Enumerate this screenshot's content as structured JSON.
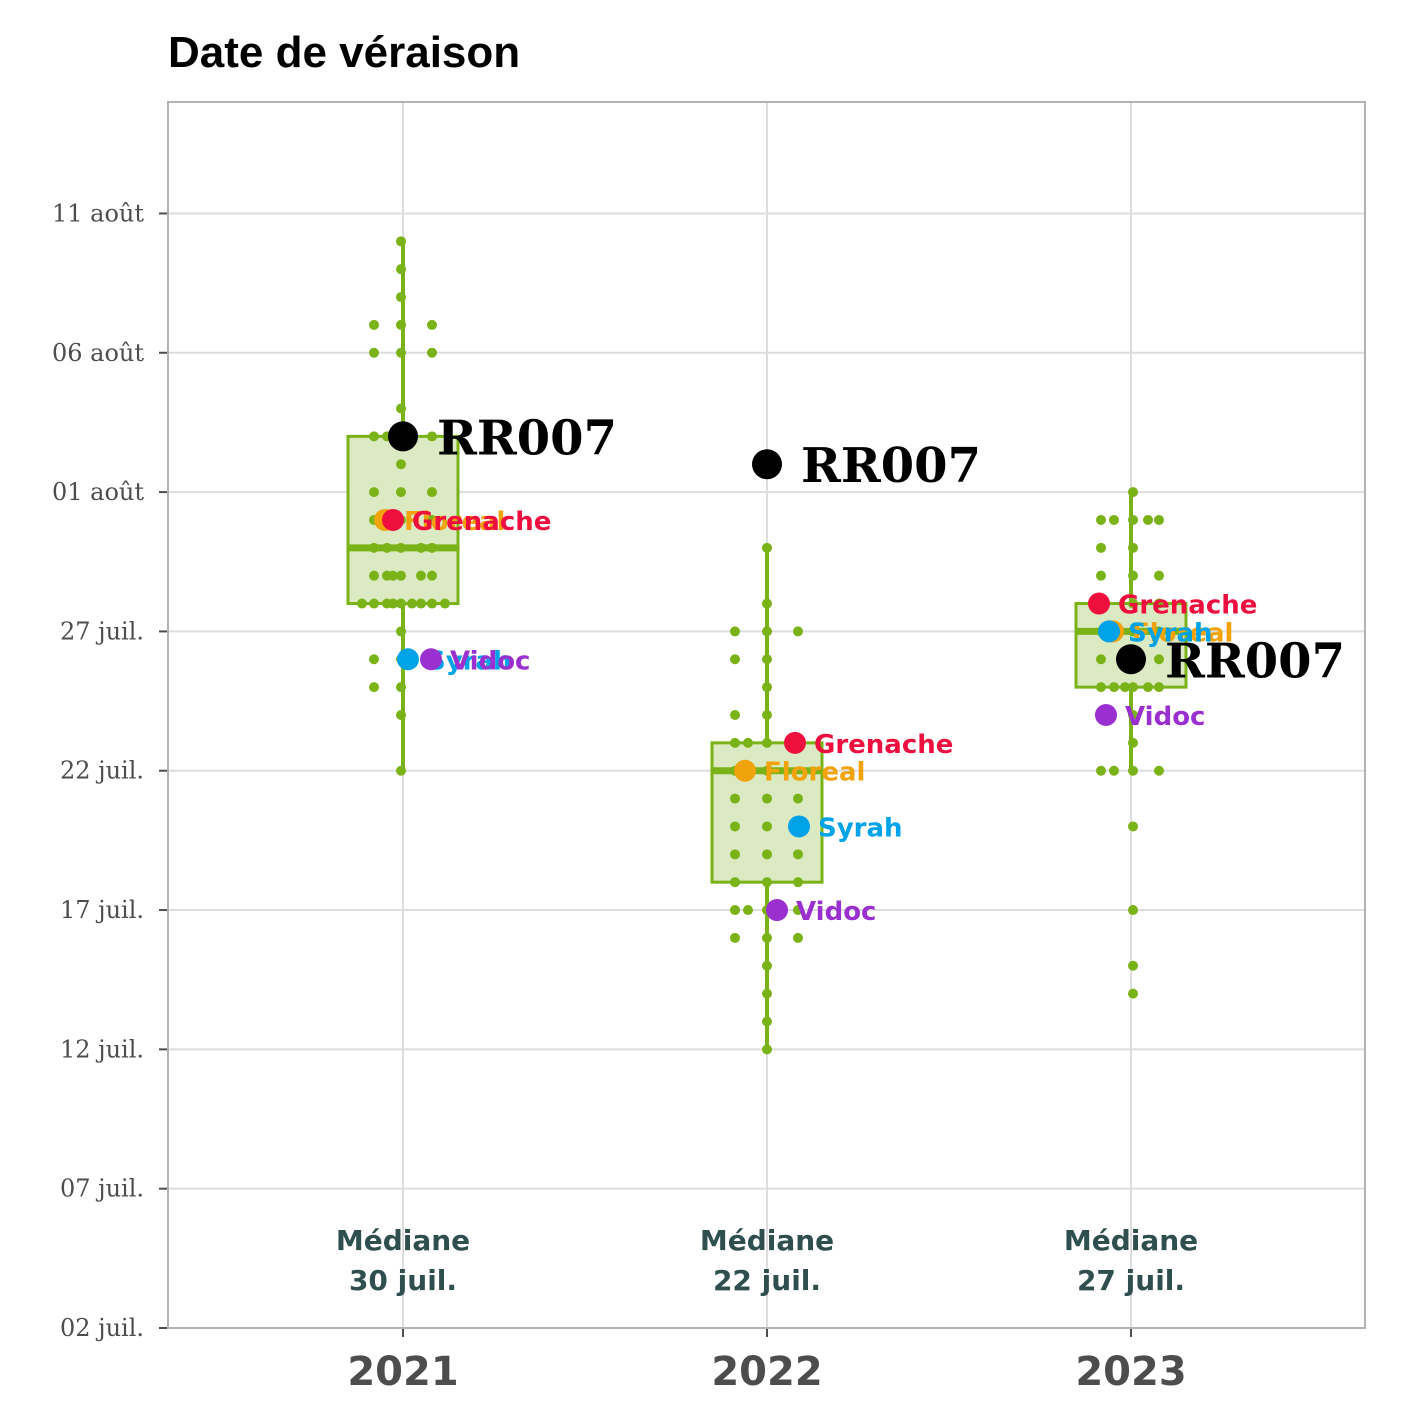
{
  "chart_data": {
    "type": "box",
    "title": "Date de véraison",
    "xlabel": "",
    "ylabel": "",
    "categories": [
      "2021",
      "2022",
      "2023"
    ],
    "y_tick_labels": [
      "02 juil.",
      "07 juil.",
      "12 juil.",
      "17 juil.",
      "22 juil.",
      "27 juil.",
      "01 août",
      "06 août",
      "11 août"
    ],
    "y_ticks": [
      "2000-07-02",
      "2000-07-07",
      "2000-07-12",
      "2000-07-17",
      "2000-07-22",
      "2000-07-27",
      "2000-08-01",
      "2000-08-06",
      "2000-08-11"
    ],
    "ylim": [
      "2000-07-02",
      "2000-08-15"
    ],
    "grid": true,
    "colors": {
      "box_stroke": "#7ab317",
      "box_fill": "#dceac3",
      "points": "#7ab317",
      "highlight": "#000000",
      "Grenache": "#ef0f3f",
      "Floreal": "#f0a30a",
      "Syrah": "#00a2e8",
      "Vidoc": "#9b30d0",
      "median_text": "#2f4f4f"
    },
    "boxes": [
      {
        "category": "2021",
        "whisker_low": "2000-07-22",
        "q1": "2000-07-28",
        "median": "2000-07-30",
        "q3": "2000-08-03",
        "whisker_high": "2000-08-10"
      },
      {
        "category": "2022",
        "whisker_low": "2000-07-12",
        "q1": "2000-07-18",
        "median": "2000-07-22",
        "q3": "2000-07-23",
        "whisker_high": "2000-07-30"
      },
      {
        "category": "2023",
        "whisker_low": "2000-07-22",
        "q1": "2000-07-25",
        "median": "2000-07-27",
        "q3": "2000-07-28",
        "whisker_high": "2000-08-01"
      }
    ],
    "median_labels": [
      {
        "category": "2021",
        "line1": "Médiane",
        "line2": "30 juil."
      },
      {
        "category": "2022",
        "line1": "Médiane",
        "line2": "22 juil."
      },
      {
        "category": "2023",
        "line1": "Médiane",
        "line2": "27 juil."
      }
    ],
    "points": [
      {
        "category": "2021",
        "dates": [
          "2000-08-10",
          "2000-08-09",
          "2000-08-08",
          "2000-08-07",
          "2000-08-07",
          "2000-08-07",
          "2000-08-06",
          "2000-08-06",
          "2000-08-06",
          "2000-08-04",
          "2000-08-03",
          "2000-08-03",
          "2000-08-03",
          "2000-08-03",
          "2000-08-02",
          "2000-08-01",
          "2000-08-01",
          "2000-08-01",
          "2000-07-31",
          "2000-07-31",
          "2000-07-31",
          "2000-07-30",
          "2000-07-30",
          "2000-07-30",
          "2000-07-30",
          "2000-07-30",
          "2000-07-29",
          "2000-07-29",
          "2000-07-29",
          "2000-07-29",
          "2000-07-29",
          "2000-07-29",
          "2000-07-28",
          "2000-07-28",
          "2000-07-28",
          "2000-07-28",
          "2000-07-28",
          "2000-07-28",
          "2000-07-28",
          "2000-07-28",
          "2000-07-28",
          "2000-07-27",
          "2000-07-26",
          "2000-07-26",
          "2000-07-25",
          "2000-07-25",
          "2000-07-24",
          "2000-07-22"
        ]
      },
      {
        "category": "2022",
        "dates": [
          "2000-08-02",
          "2000-07-30",
          "2000-07-28",
          "2000-07-27",
          "2000-07-27",
          "2000-07-27",
          "2000-07-26",
          "2000-07-26",
          "2000-07-25",
          "2000-07-24",
          "2000-07-24",
          "2000-07-23",
          "2000-07-23",
          "2000-07-23",
          "2000-07-23",
          "2000-07-22",
          "2000-07-22",
          "2000-07-21",
          "2000-07-21",
          "2000-07-21",
          "2000-07-20",
          "2000-07-20",
          "2000-07-19",
          "2000-07-19",
          "2000-07-19",
          "2000-07-18",
          "2000-07-18",
          "2000-07-18",
          "2000-07-17",
          "2000-07-17",
          "2000-07-17",
          "2000-07-17",
          "2000-07-16",
          "2000-07-16",
          "2000-07-16",
          "2000-07-15",
          "2000-07-14",
          "2000-07-13",
          "2000-07-12"
        ]
      },
      {
        "category": "2023",
        "dates": [
          "2000-08-01",
          "2000-07-31",
          "2000-07-31",
          "2000-07-31",
          "2000-07-31",
          "2000-07-31",
          "2000-07-30",
          "2000-07-30",
          "2000-07-29",
          "2000-07-29",
          "2000-07-29",
          "2000-07-28",
          "2000-07-28",
          "2000-07-28",
          "2000-07-27",
          "2000-07-27",
          "2000-07-27",
          "2000-07-27",
          "2000-07-26",
          "2000-07-26",
          "2000-07-26",
          "2000-07-25",
          "2000-07-25",
          "2000-07-25",
          "2000-07-25",
          "2000-07-25",
          "2000-07-25",
          "2000-07-24",
          "2000-07-23",
          "2000-07-22",
          "2000-07-22",
          "2000-07-22",
          "2000-07-22",
          "2000-07-20",
          "2000-07-17",
          "2000-07-15",
          "2000-07-14"
        ]
      }
    ],
    "highlights": [
      {
        "category": "2021",
        "label": "RR007",
        "date": "2000-08-03",
        "color_key": "highlight",
        "size": "big"
      },
      {
        "category": "2021",
        "label": "Floreal",
        "date": "2000-07-31",
        "color_key": "Floreal",
        "size": "small"
      },
      {
        "category": "2021",
        "label": "Grenache",
        "date": "2000-07-31",
        "color_key": "Grenache",
        "size": "small"
      },
      {
        "category": "2021",
        "label": "Syrah",
        "date": "2000-07-26",
        "color_key": "Syrah",
        "size": "small"
      },
      {
        "category": "2021",
        "label": "Vidoc",
        "date": "2000-07-26",
        "color_key": "Vidoc",
        "size": "small"
      },
      {
        "category": "2022",
        "label": "RR007",
        "date": "2000-08-02",
        "color_key": "highlight",
        "size": "big"
      },
      {
        "category": "2022",
        "label": "Grenache",
        "date": "2000-07-23",
        "color_key": "Grenache",
        "size": "small"
      },
      {
        "category": "2022",
        "label": "Floreal",
        "date": "2000-07-22",
        "color_key": "Floreal",
        "size": "small"
      },
      {
        "category": "2022",
        "label": "Syrah",
        "date": "2000-07-20",
        "color_key": "Syrah",
        "size": "small"
      },
      {
        "category": "2022",
        "label": "Vidoc",
        "date": "2000-07-17",
        "color_key": "Vidoc",
        "size": "small"
      },
      {
        "category": "2023",
        "label": "Grenache",
        "date": "2000-07-28",
        "color_key": "Grenache",
        "size": "small"
      },
      {
        "category": "2023",
        "label": "Floreal",
        "date": "2000-07-27",
        "color_key": "Floreal",
        "size": "small"
      },
      {
        "category": "2023",
        "label": "Syrah",
        "date": "2000-07-27",
        "color_key": "Syrah",
        "size": "small"
      },
      {
        "category": "2023",
        "label": "RR007",
        "date": "2000-07-26",
        "color_key": "highlight",
        "size": "big"
      },
      {
        "category": "2023",
        "label": "Vidoc",
        "date": "2000-07-24",
        "color_key": "Vidoc",
        "size": "small"
      }
    ]
  }
}
